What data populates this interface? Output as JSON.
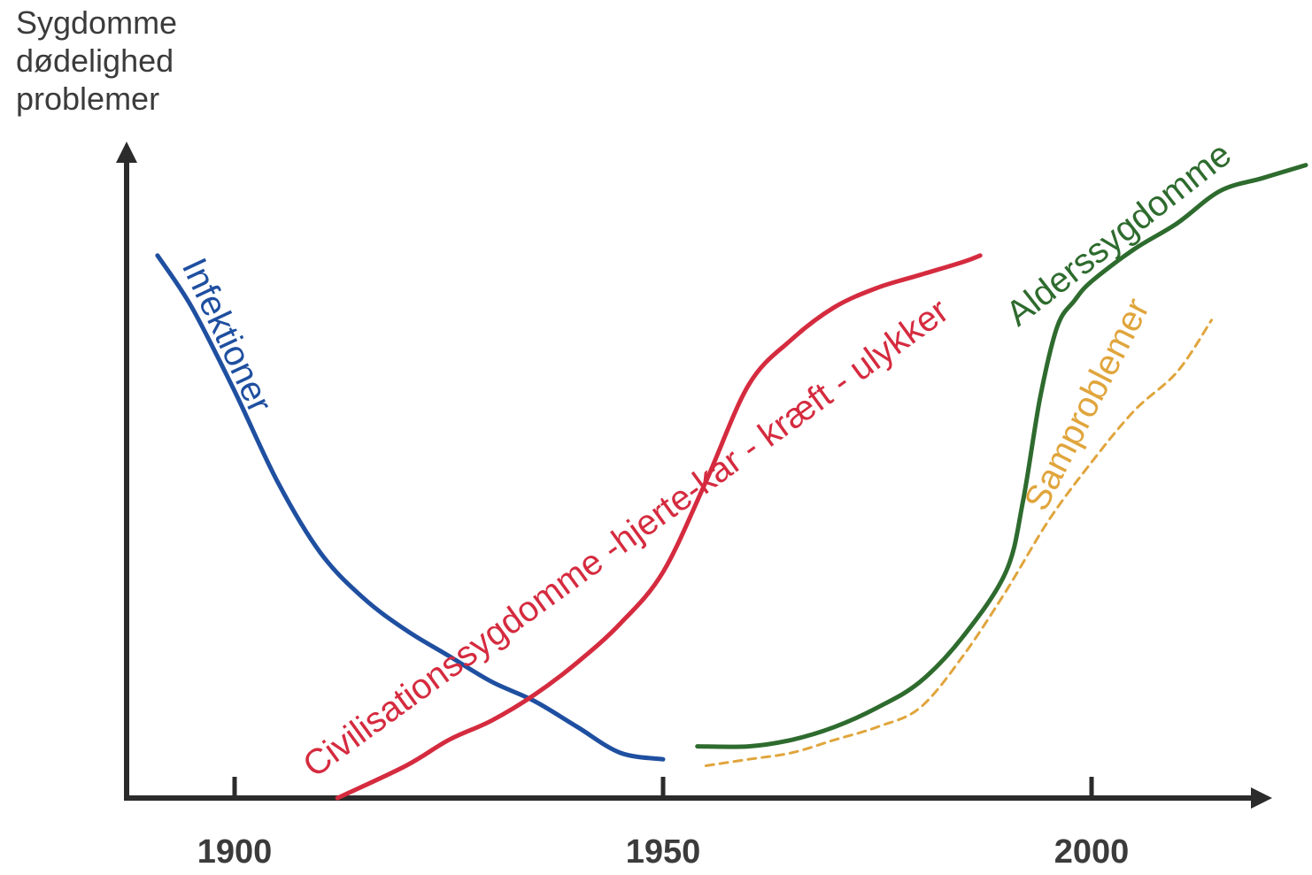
{
  "chart_data": {
    "type": "line",
    "title": "",
    "ylabel_lines": [
      "Sygdomme",
      "dødelighed",
      "problemer"
    ],
    "xlabel": "",
    "xlim": [
      1888,
      2022
    ],
    "ylim": [
      0,
      100
    ],
    "x_ticks": [
      1900,
      1950,
      2000
    ],
    "x_tick_labels": [
      "1900",
      "1950",
      "2000"
    ],
    "grid": false,
    "legend": "none",
    "series": [
      {
        "name": "Infektioner",
        "color": "#1f4fa0",
        "style": "solid",
        "x": [
          1891,
          1895,
          1900,
          1905,
          1910,
          1915,
          1920,
          1925,
          1930,
          1935,
          1940,
          1945,
          1950
        ],
        "y": [
          84,
          76,
          63,
          49,
          38,
          31,
          26,
          22,
          18,
          15,
          11,
          7,
          6
        ]
      },
      {
        "name": "Civilisationssygdomme -hjerte-kar - kræft - ulykker",
        "color": "#d52b3f",
        "style": "solid",
        "x": [
          1912,
          1920,
          1925,
          1930,
          1935,
          1940,
          1945,
          1950,
          1955,
          1960,
          1965,
          1970,
          1975,
          1980,
          1985,
          1987
        ],
        "y": [
          0,
          5,
          9,
          12,
          16,
          21,
          27,
          35,
          49,
          64,
          71,
          76,
          79,
          81,
          83,
          84
        ]
      },
      {
        "name": "Alderssygdomme",
        "color": "#2e6b2e",
        "style": "solid",
        "x": [
          1954,
          1960,
          1965,
          1970,
          1975,
          1980,
          1985,
          1990,
          1992,
          1994,
          1996,
          1998,
          2000,
          2005,
          2010,
          2015,
          2020,
          2025
        ],
        "y": [
          8,
          8,
          9,
          11,
          14,
          18,
          25,
          35,
          46,
          62,
          73,
          77,
          80,
          85,
          89,
          94,
          96,
          98
        ]
      },
      {
        "name": "Samproblemer",
        "color": "#e0a53c",
        "style": "dashed",
        "x": [
          1955,
          1960,
          1965,
          1970,
          1975,
          1980,
          1985,
          1990,
          1995,
          2000,
          2005,
          2010,
          2014
        ],
        "y": [
          5,
          6,
          7,
          9,
          11,
          14,
          22,
          32,
          43,
          52,
          60,
          66,
          74
        ]
      }
    ],
    "label_angles": [
      65,
      -36,
      -38,
      -63
    ]
  }
}
